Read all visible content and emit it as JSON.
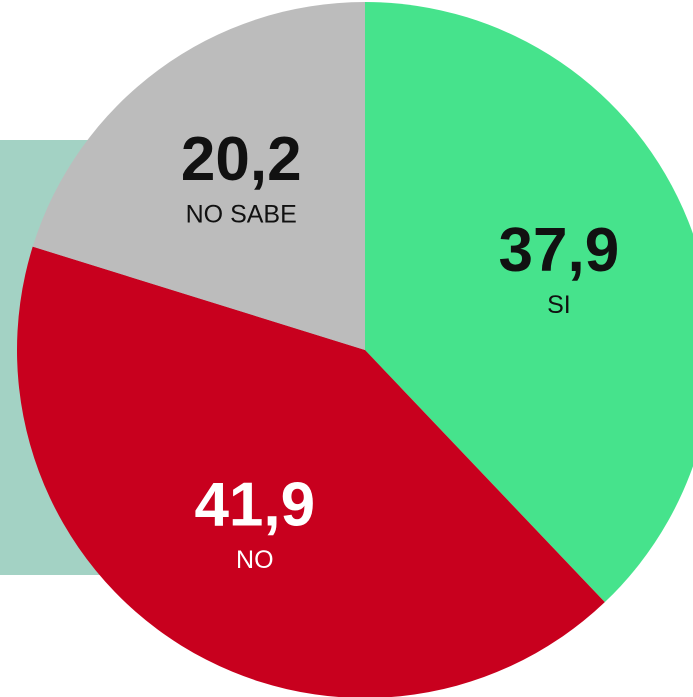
{
  "chart_data": {
    "type": "pie",
    "categories": [
      "SI",
      "NO",
      "NO SABE"
    ],
    "values": [
      37.9,
      41.9,
      20.2
    ],
    "value_labels": [
      "37,9",
      "41,9",
      "20,2"
    ],
    "colors": [
      "#46e38c",
      "#c8001e",
      "#bcbcbc"
    ]
  }
}
